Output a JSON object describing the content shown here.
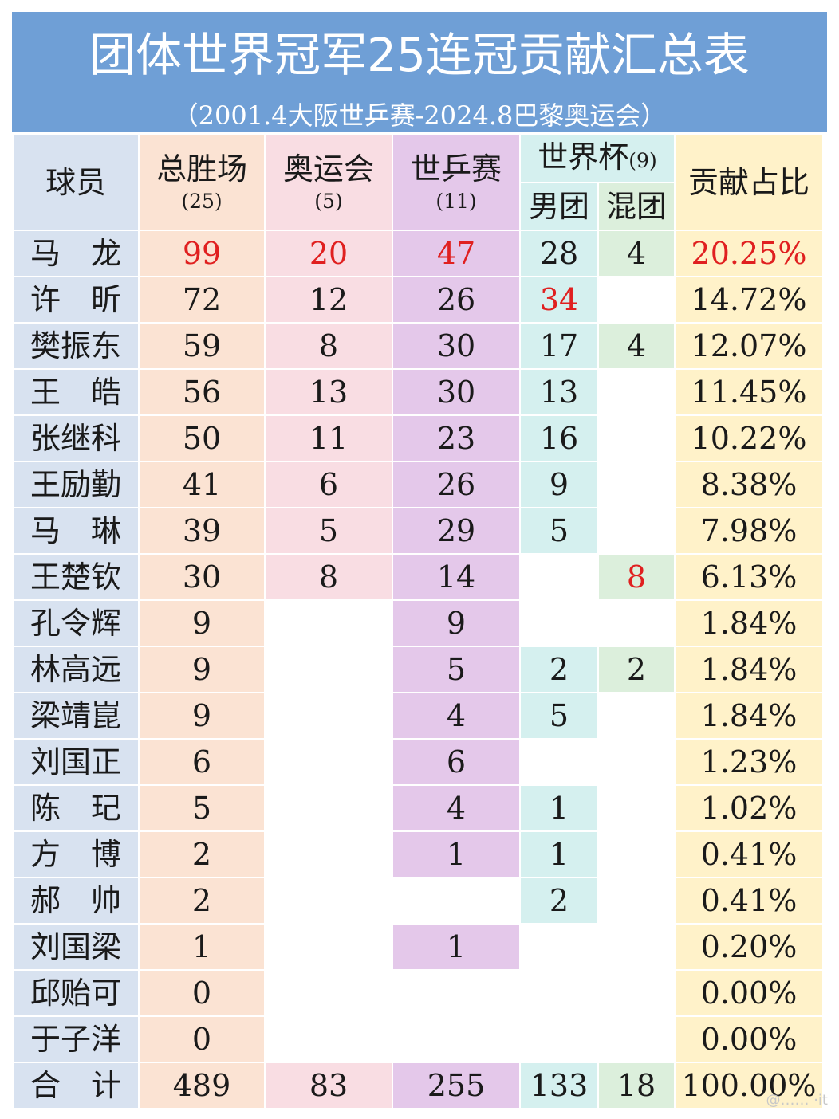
{
  "header": {
    "title": "团体世界冠军25连冠贡献汇总表",
    "subtitle": "（2001.4大阪世乒赛-2024.8巴黎奥运会）"
  },
  "columns": {
    "player": "球员",
    "total": "总胜场",
    "total_count": "(25)",
    "olympics": "奥运会",
    "olympics_count": "(5)",
    "wtt": "世乒赛",
    "wtt_count": "(11)",
    "worldcup": "世界杯",
    "worldcup_count": "(9)",
    "men_team": "男团",
    "mixed_team": "混团",
    "share": "贡献占比"
  },
  "rows": [
    {
      "player": "马　龙",
      "total": "99",
      "olympics": "20",
      "wtt": "47",
      "men": "28",
      "mixed": "4",
      "share": "20.25%"
    },
    {
      "player": "许　昕",
      "total": "72",
      "olympics": "12",
      "wtt": "26",
      "men": "34",
      "mixed": "",
      "share": "14.72%"
    },
    {
      "player": "樊振东",
      "total": "59",
      "olympics": "8",
      "wtt": "30",
      "men": "17",
      "mixed": "4",
      "share": "12.07%"
    },
    {
      "player": "王　皓",
      "total": "56",
      "olympics": "13",
      "wtt": "30",
      "men": "13",
      "mixed": "",
      "share": "11.45%"
    },
    {
      "player": "张继科",
      "total": "50",
      "olympics": "11",
      "wtt": "23",
      "men": "16",
      "mixed": "",
      "share": "10.22%"
    },
    {
      "player": "王励勤",
      "total": "41",
      "olympics": "6",
      "wtt": "26",
      "men": "9",
      "mixed": "",
      "share": "8.38%"
    },
    {
      "player": "马　琳",
      "total": "39",
      "olympics": "5",
      "wtt": "29",
      "men": "5",
      "mixed": "",
      "share": "7.98%"
    },
    {
      "player": "王楚钦",
      "total": "30",
      "olympics": "8",
      "wtt": "14",
      "men": "",
      "mixed": "8",
      "share": "6.13%"
    },
    {
      "player": "孔令辉",
      "total": "9",
      "olympics": "",
      "wtt": "9",
      "men": "",
      "mixed": "",
      "share": "1.84%"
    },
    {
      "player": "林高远",
      "total": "9",
      "olympics": "",
      "wtt": "5",
      "men": "2",
      "mixed": "2",
      "share": "1.84%"
    },
    {
      "player": "梁靖崑",
      "total": "9",
      "olympics": "",
      "wtt": "4",
      "men": "5",
      "mixed": "",
      "share": "1.84%"
    },
    {
      "player": "刘国正",
      "total": "6",
      "olympics": "",
      "wtt": "6",
      "men": "",
      "mixed": "",
      "share": "1.23%"
    },
    {
      "player": "陈　玘",
      "total": "5",
      "olympics": "",
      "wtt": "4",
      "men": "1",
      "mixed": "",
      "share": "1.02%"
    },
    {
      "player": "方　博",
      "total": "2",
      "olympics": "",
      "wtt": "1",
      "men": "1",
      "mixed": "",
      "share": "0.41%"
    },
    {
      "player": "郝　帅",
      "total": "2",
      "olympics": "",
      "wtt": "",
      "men": "2",
      "mixed": "",
      "share": "0.41%"
    },
    {
      "player": "刘国梁",
      "total": "1",
      "olympics": "",
      "wtt": "1",
      "men": "",
      "mixed": "",
      "share": "0.20%"
    },
    {
      "player": "邱贻可",
      "total": "0",
      "olympics": "",
      "wtt": "",
      "men": "",
      "mixed": "",
      "share": "0.00%"
    },
    {
      "player": "于子洋",
      "total": "0",
      "olympics": "",
      "wtt": "",
      "men": "",
      "mixed": "",
      "share": "0.00%"
    }
  ],
  "totals": {
    "player": "合　计",
    "total": "489",
    "olympics": "83",
    "wtt": "255",
    "men": "133",
    "mixed": "18",
    "share": "100.00%"
  },
  "highlights": [
    {
      "row": 0,
      "field": "total"
    },
    {
      "row": 0,
      "field": "olympics"
    },
    {
      "row": 0,
      "field": "wtt"
    },
    {
      "row": 0,
      "field": "share"
    },
    {
      "row": 1,
      "field": "men"
    },
    {
      "row": 7,
      "field": "mixed"
    }
  ],
  "colors": {
    "header_bg": "#6f9fd6",
    "player_col": "#d8e2f0",
    "total_col": "#fbe3d3",
    "olympics_col": "#f9dde3",
    "wtt_col": "#e4c8ea",
    "men_col": "#d5f0ef",
    "mixed_col": "#dcefdc",
    "share_col": "#fff2c9",
    "highlight_text": "#e02020"
  }
}
